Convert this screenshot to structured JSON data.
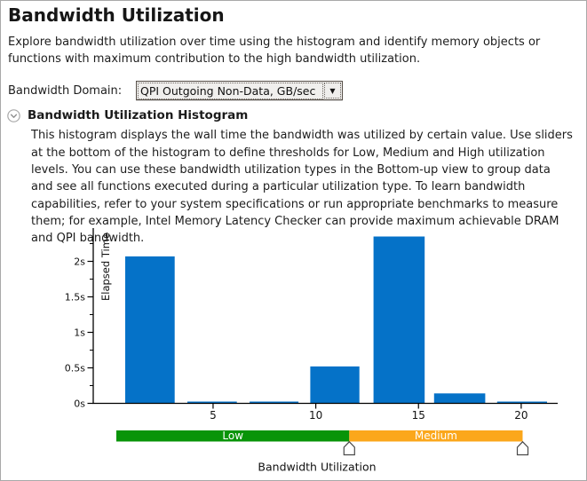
{
  "page": {
    "title": "Bandwidth Utilization",
    "intro": "Explore bandwidth utilization over time using the histogram and identify memory objects or functions with maximum contribution to the high bandwidth utilization."
  },
  "domain_selector": {
    "label": "Bandwidth Domain:",
    "value": "QPI Outgoing Non-Data, GB/sec",
    "arrow_glyph": "▼"
  },
  "histogram_section": {
    "title": "Bandwidth Utilization Histogram",
    "collapse_icon": "chevron-down-circle",
    "description": "This histogram displays the wall time the bandwidth was utilized by certain value. Use sliders at the bottom of the histogram to define thresholds for Low, Medium and High utilization levels. You can use these bandwidth utilization types in the Bottom-up view to group data and see all functions executed during a particular utilization type. To learn bandwidth capabilities, refer to your system specifications or run appropriate benchmarks to measure them; for example, Intel Memory Latency Checker can provide maximum achievable DRAM and QPI bandwidth."
  },
  "chart_data": {
    "type": "bar",
    "title": "Bandwidth Utilization Histogram",
    "xlabel": "Bandwidth Utilization",
    "ylabel": "Elapsed Time",
    "bar_color": "#0572C8",
    "axis_color": "#000000",
    "xlim": [
      -0.85,
      21.8
    ],
    "ylim": [
      0,
      2.44
    ],
    "x_ticks": [
      5,
      10,
      15,
      20
    ],
    "y_ticks": [
      {
        "value": 0,
        "label": "0s"
      },
      {
        "value": 0.5,
        "label": "0.5s"
      },
      {
        "value": 1,
        "label": "1s"
      },
      {
        "value": 1.5,
        "label": "1.5s"
      },
      {
        "value": 2,
        "label": "2s"
      }
    ],
    "y_minor_ticks": [
      0.25,
      0.75,
      1.25,
      1.75,
      2.25
    ],
    "bins": [
      {
        "x0": 0.72,
        "x1": 3.13,
        "elapsed_s": 2.07
      },
      {
        "x0": 3.75,
        "x1": 6.16,
        "elapsed_s": 0.02
      },
      {
        "x0": 6.78,
        "x1": 9.16,
        "elapsed_s": 0.02
      },
      {
        "x0": 9.73,
        "x1": 12.12,
        "elapsed_s": 0.52
      },
      {
        "x0": 12.81,
        "x1": 15.3,
        "elapsed_s": 2.35
      },
      {
        "x0": 15.76,
        "x1": 18.25,
        "elapsed_s": 0.14
      },
      {
        "x0": 18.83,
        "x1": 21.26,
        "elapsed_s": 0.02
      }
    ],
    "thresholds": {
      "segments": [
        {
          "label": "Low",
          "color": "#089408",
          "from": 0.29,
          "to": 11.63
        },
        {
          "label": "Medium",
          "color": "#FBA71B",
          "from": 11.63,
          "to": 20.07
        }
      ],
      "slider_positions": [
        11.63,
        20.07
      ],
      "label_color": "#FFFFFF"
    }
  }
}
